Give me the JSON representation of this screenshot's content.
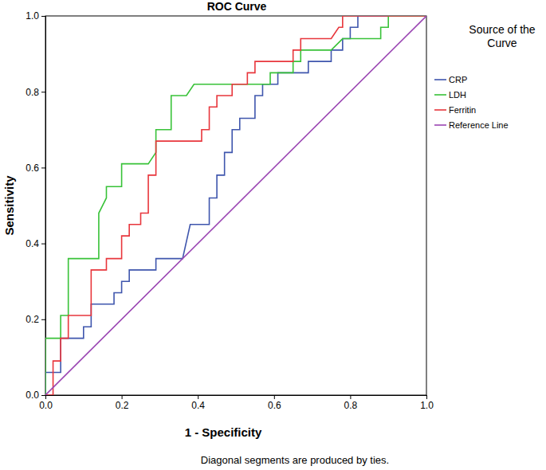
{
  "chart_data": {
    "type": "line",
    "title": "ROC Curve",
    "x_label": "1 - Specificity",
    "y_label": "Sensitivity",
    "legend_title": "Source of the Curve",
    "legend": "right",
    "grid": false,
    "annotations": [
      "Diagonal segments are produced by ties."
    ],
    "xlim": [
      0,
      1
    ],
    "ylim": [
      0,
      1
    ],
    "xticks": [
      {
        "value": 0,
        "label": "0.0"
      },
      {
        "value": 0.2,
        "label": "0.2"
      },
      {
        "value": 0.4,
        "label": "0.4"
      },
      {
        "value": 0.6,
        "label": "0.6"
      },
      {
        "value": 0.8,
        "label": "0.8"
      },
      {
        "value": 1,
        "label": "1.0"
      }
    ],
    "yticks": [
      {
        "value": 0,
        "label": "0.0"
      },
      {
        "value": 0.2,
        "label": "0.2"
      },
      {
        "value": 0.4,
        "label": "0.4"
      },
      {
        "value": 0.6,
        "label": "0.6"
      },
      {
        "value": 0.8,
        "label": "0.8"
      },
      {
        "value": 1,
        "label": "1.0"
      }
    ],
    "series": [
      {
        "name": "CRP",
        "color": "#3f56ad",
        "x": [
          0,
          0,
          0.04,
          0.04,
          0.1,
          0.1,
          0.12,
          0.12,
          0.18,
          0.18,
          0.2,
          0.2,
          0.22,
          0.22,
          0.29,
          0.29,
          0.36,
          0.38,
          0.43,
          0.43,
          0.45,
          0.45,
          0.47,
          0.47,
          0.49,
          0.49,
          0.51,
          0.51,
          0.55,
          0.55,
          0.57,
          0.57,
          0.61,
          0.61,
          0.69,
          0.69,
          0.75,
          0.75,
          0.78,
          0.78,
          0.8,
          0.8,
          0.82,
          0.82,
          1
        ],
        "values": [
          0,
          0.06,
          0.06,
          0.15,
          0.15,
          0.18,
          0.18,
          0.24,
          0.24,
          0.27,
          0.27,
          0.3,
          0.3,
          0.33,
          0.33,
          0.36,
          0.36,
          0.45,
          0.45,
          0.52,
          0.52,
          0.58,
          0.58,
          0.64,
          0.64,
          0.7,
          0.7,
          0.73,
          0.73,
          0.79,
          0.79,
          0.82,
          0.82,
          0.85,
          0.85,
          0.88,
          0.88,
          0.91,
          0.91,
          0.94,
          0.94,
          0.97,
          0.97,
          1,
          1
        ]
      },
      {
        "name": "LDH",
        "color": "#38c238",
        "x": [
          0,
          0,
          0.04,
          0.04,
          0.06,
          0.06,
          0.14,
          0.14,
          0.16,
          0.16,
          0.2,
          0.2,
          0.27,
          0.29,
          0.29,
          0.33,
          0.33,
          0.37,
          0.39,
          0.59,
          0.59,
          0.65,
          0.65,
          0.67,
          0.67,
          0.75,
          0.78,
          0.88,
          0.88,
          0.9,
          0.9,
          1
        ],
        "values": [
          0,
          0.15,
          0.15,
          0.21,
          0.21,
          0.36,
          0.36,
          0.48,
          0.52,
          0.55,
          0.55,
          0.61,
          0.61,
          0.64,
          0.7,
          0.7,
          0.79,
          0.79,
          0.82,
          0.82,
          0.85,
          0.85,
          0.88,
          0.88,
          0.91,
          0.91,
          0.94,
          0.94,
          0.97,
          0.97,
          1,
          1
        ]
      },
      {
        "name": "Ferritin",
        "color": "#e8363c",
        "x": [
          0,
          0.02,
          0.02,
          0.04,
          0.04,
          0.06,
          0.06,
          0.12,
          0.12,
          0.16,
          0.16,
          0.2,
          0.2,
          0.22,
          0.22,
          0.25,
          0.25,
          0.27,
          0.27,
          0.29,
          0.29,
          0.41,
          0.41,
          0.43,
          0.43,
          0.45,
          0.45,
          0.49,
          0.49,
          0.53,
          0.53,
          0.55,
          0.55,
          0.65,
          0.65,
          0.67,
          0.67,
          0.75,
          0.77,
          0.78,
          0.78,
          1
        ],
        "values": [
          0,
          0,
          0.09,
          0.09,
          0.15,
          0.15,
          0.21,
          0.21,
          0.33,
          0.33,
          0.36,
          0.36,
          0.42,
          0.42,
          0.45,
          0.45,
          0.48,
          0.48,
          0.58,
          0.58,
          0.67,
          0.67,
          0.7,
          0.7,
          0.76,
          0.76,
          0.79,
          0.79,
          0.82,
          0.82,
          0.85,
          0.85,
          0.88,
          0.88,
          0.91,
          0.91,
          0.94,
          0.94,
          0.97,
          0.97,
          1,
          1
        ]
      },
      {
        "name": "Reference Line",
        "color": "#9b47b3",
        "x": [
          0,
          1
        ],
        "values": [
          0,
          1
        ]
      }
    ]
  }
}
